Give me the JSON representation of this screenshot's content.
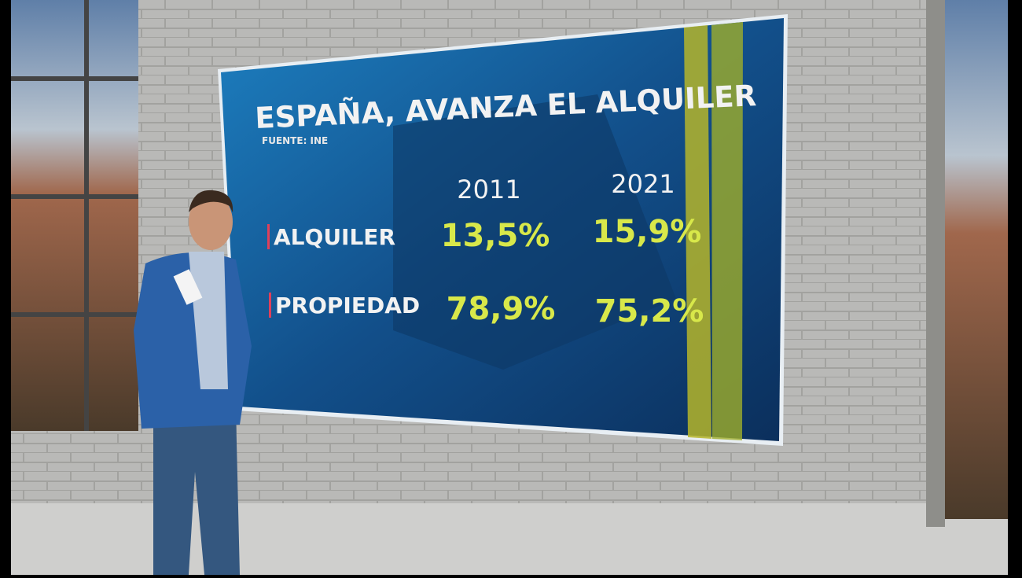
{
  "screen": {
    "title": "ESPAÑA, AVANZA EL ALQUILER",
    "source": "FUENTE: INE",
    "table": {
      "columns": [
        "2011",
        "2021"
      ],
      "rows": [
        [
          "ALQUILER",
          "13,5%",
          "15,9%"
        ],
        [
          "PROPIEDAD",
          "78,9%",
          "75,2%"
        ]
      ]
    }
  }
}
